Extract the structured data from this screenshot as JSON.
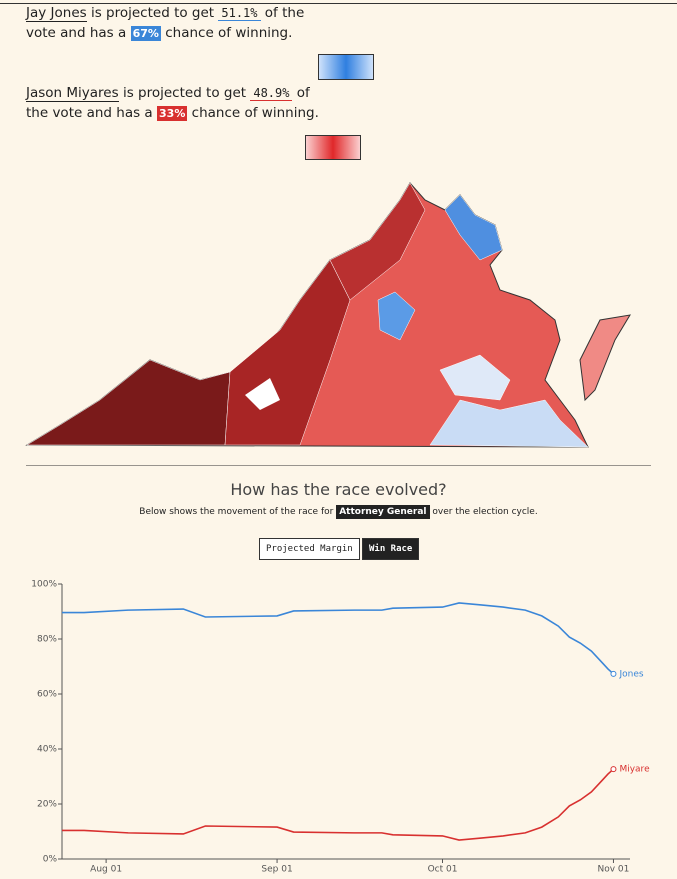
{
  "candidates": [
    {
      "name": "Jay Jones",
      "t1": "is projected to get",
      "vote": "51.1%",
      "t2": "of the vote",
      "t3": "and has a",
      "chance": "67%",
      "t4": "chance of winning."
    },
    {
      "name": "Jason Miyares",
      "t1": "is projected to get",
      "vote": "48.9%",
      "t2": "of the vote",
      "t3": "and has a",
      "chance": "33%",
      "t4": "chance of winning."
    }
  ],
  "section": {
    "title": "How has the race evolved?",
    "intro": "Below shows the movement of the race for",
    "race": "Attorney General",
    "outro": "over the election cycle.",
    "buttons": [
      "Projected Margin",
      "Win Race"
    ]
  },
  "chart_data": {
    "type": "line",
    "x": [
      "Jul 24",
      "Jul 28",
      "Aug 05",
      "Aug 15",
      "Aug 19",
      "Sep 01",
      "Sep 04",
      "Sep 15",
      "Sep 20",
      "Sep 22",
      "Oct 01",
      "Oct 04",
      "Oct 08",
      "Oct 12",
      "Oct 16",
      "Oct 19",
      "Oct 22",
      "Oct 24",
      "Oct 26",
      "Oct 28",
      "Oct 30",
      "Oct 31",
      "Nov 01"
    ],
    "series": [
      {
        "name": "Jones",
        "color": "#3a86d8",
        "values": [
          89.6,
          89.6,
          90.5,
          90.9,
          88.0,
          88.4,
          90.2,
          90.5,
          90.5,
          91.2,
          91.6,
          93.1,
          92.4,
          91.6,
          90.5,
          88.4,
          84.7,
          80.7,
          78.5,
          75.6,
          71.3,
          69.1,
          67.3
        ]
      },
      {
        "name": "Miyare",
        "color": "#d8302f",
        "values": [
          10.4,
          10.4,
          9.5,
          9.1,
          12.0,
          11.6,
          9.8,
          9.5,
          9.5,
          8.8,
          8.4,
          6.9,
          7.6,
          8.4,
          9.5,
          11.6,
          15.3,
          19.3,
          21.5,
          24.4,
          28.7,
          30.9,
          32.7
        ]
      }
    ],
    "xlim": [
      "Jul 24",
      "Nov 04"
    ],
    "xticks": [
      "Aug 01",
      "Sep 01",
      "Oct 01",
      "Nov 01"
    ],
    "ylim": [
      0,
      100
    ],
    "yticks": [
      {
        "value": 0,
        "label": "0%"
      },
      {
        "value": 20,
        "label": "20%"
      },
      {
        "value": 40,
        "label": "40%"
      },
      {
        "value": 60,
        "label": "60%"
      },
      {
        "value": 80,
        "label": "80%"
      },
      {
        "value": 100,
        "label": "100%"
      }
    ]
  }
}
